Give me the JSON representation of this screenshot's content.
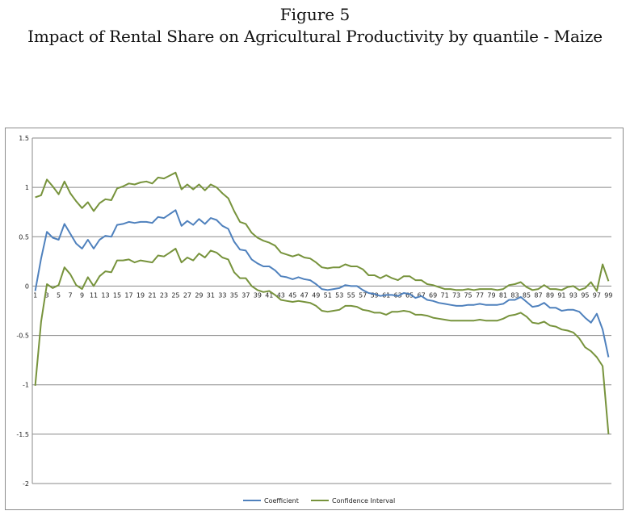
{
  "figure": {
    "label": "Figure 5",
    "caption": "Impact of Rental Share on Agricultural Productivity by quantile - Maize"
  },
  "chart_data": {
    "type": "line",
    "ylim": [
      -2,
      1.5
    ],
    "y_ticks": [
      1.5,
      1,
      0.5,
      0,
      -0.5,
      -1,
      -1.5,
      -2
    ],
    "x": [
      1,
      2,
      3,
      4,
      5,
      6,
      7,
      8,
      9,
      10,
      11,
      12,
      13,
      14,
      15,
      16,
      17,
      18,
      19,
      20,
      21,
      22,
      23,
      24,
      25,
      26,
      27,
      28,
      29,
      30,
      31,
      32,
      33,
      34,
      35,
      36,
      37,
      38,
      39,
      40,
      41,
      42,
      43,
      44,
      45,
      46,
      47,
      48,
      49,
      50,
      51,
      52,
      53,
      54,
      55,
      56,
      57,
      58,
      59,
      60,
      61,
      62,
      63,
      64,
      65,
      66,
      67,
      68,
      69,
      70,
      71,
      72,
      73,
      74,
      75,
      76,
      77,
      78,
      79,
      80,
      81,
      82,
      83,
      84,
      85,
      86,
      87,
      88,
      89,
      90,
      91,
      92,
      93,
      94,
      95,
      96,
      97,
      98,
      99
    ],
    "x_tick_labels": [
      "1",
      "3",
      "5",
      "7",
      "9",
      "11",
      "13",
      "15",
      "17",
      "19",
      "21",
      "23",
      "25",
      "27",
      "29",
      "31",
      "33",
      "35",
      "37",
      "39",
      "41",
      "43",
      "45",
      "47",
      "49",
      "51",
      "53",
      "55",
      "57",
      "59",
      "61",
      "63",
      "65",
      "67",
      "69",
      "71",
      "73",
      "75",
      "77",
      "79",
      "81",
      "83",
      "85",
      "87",
      "89",
      "91",
      "93",
      "95",
      "97",
      "99"
    ],
    "grid": "horizontal",
    "legend_position": "bottom",
    "colors": {
      "coefficient": "#4f81bd",
      "confidence": "#77933c"
    },
    "series": [
      {
        "name": "Coefficient",
        "values": [
          -0.05,
          0.28,
          0.55,
          0.49,
          0.47,
          0.63,
          0.53,
          0.43,
          0.38,
          0.47,
          0.38,
          0.47,
          0.51,
          0.5,
          0.62,
          0.63,
          0.65,
          0.64,
          0.65,
          0.65,
          0.64,
          0.7,
          0.69,
          0.73,
          0.77,
          0.61,
          0.66,
          0.62,
          0.68,
          0.63,
          0.69,
          0.67,
          0.61,
          0.58,
          0.45,
          0.37,
          0.36,
          0.27,
          0.23,
          0.2,
          0.2,
          0.16,
          0.1,
          0.09,
          0.07,
          0.09,
          0.07,
          0.06,
          0.02,
          -0.03,
          -0.04,
          -0.03,
          -0.02,
          0.01,
          0,
          0,
          -0.04,
          -0.07,
          -0.08,
          -0.1,
          -0.09,
          -0.09,
          -0.1,
          -0.07,
          -0.08,
          -0.12,
          -0.1,
          -0.14,
          -0.15,
          -0.17,
          -0.18,
          -0.19,
          -0.2,
          -0.2,
          -0.19,
          -0.19,
          -0.18,
          -0.19,
          -0.19,
          -0.19,
          -0.18,
          -0.14,
          -0.14,
          -0.11,
          -0.16,
          -0.21,
          -0.2,
          -0.17,
          -0.22,
          -0.22,
          -0.25,
          -0.24,
          -0.24,
          -0.26,
          -0.32,
          -0.37,
          -0.28,
          -0.44,
          -0.72
        ]
      },
      {
        "name": "Confidence Interval",
        "values": [
          0.9,
          0.92,
          1.08,
          1.01,
          0.93,
          1.06,
          0.94,
          0.86,
          0.79,
          0.85,
          0.76,
          0.84,
          0.88,
          0.87,
          0.99,
          1.01,
          1.04,
          1.03,
          1.05,
          1.06,
          1.04,
          1.1,
          1.09,
          1.12,
          1.15,
          0.98,
          1.03,
          0.98,
          1.03,
          0.97,
          1.03,
          1,
          0.94,
          0.89,
          0.76,
          0.65,
          0.63,
          0.54,
          0.49,
          0.46,
          0.44,
          0.41,
          0.34,
          0.32,
          0.3,
          0.32,
          0.29,
          0.28,
          0.24,
          0.19,
          0.18,
          0.19,
          0.19,
          0.22,
          0.2,
          0.2,
          0.17,
          0.11,
          0.11,
          0.08,
          0.11,
          0.08,
          0.06,
          0.1,
          0.1,
          0.06,
          0.06,
          0.02,
          0.01,
          -0.01,
          -0.03,
          -0.03,
          -0.04,
          -0.04,
          -0.03,
          -0.04,
          -0.03,
          -0.03,
          -0.03,
          -0.04,
          -0.03,
          0.01,
          0.02,
          0.04,
          -0.01,
          -0.04,
          -0.03,
          0.01,
          -0.03,
          -0.03,
          -0.04,
          -0.01,
          0,
          -0.04,
          -0.02,
          0.04,
          -0.05,
          0.22,
          0.05
        ]
      },
      {
        "name": "Confidence Interval",
        "values": [
          -1.01,
          -0.36,
          0.02,
          -0.02,
          0.01,
          0.19,
          0.12,
          0.01,
          -0.03,
          0.09,
          0,
          0.1,
          0.15,
          0.14,
          0.26,
          0.26,
          0.27,
          0.24,
          0.26,
          0.25,
          0.24,
          0.31,
          0.3,
          0.34,
          0.38,
          0.24,
          0.29,
          0.26,
          0.33,
          0.29,
          0.36,
          0.34,
          0.29,
          0.27,
          0.14,
          0.08,
          0.08,
          0,
          -0.04,
          -0.06,
          -0.05,
          -0.09,
          -0.14,
          -0.15,
          -0.16,
          -0.15,
          -0.16,
          -0.17,
          -0.2,
          -0.25,
          -0.26,
          -0.25,
          -0.24,
          -0.2,
          -0.2,
          -0.21,
          -0.24,
          -0.25,
          -0.27,
          -0.27,
          -0.29,
          -0.26,
          -0.26,
          -0.25,
          -0.26,
          -0.29,
          -0.29,
          -0.3,
          -0.32,
          -0.33,
          -0.34,
          -0.35,
          -0.35,
          -0.35,
          -0.35,
          -0.35,
          -0.34,
          -0.35,
          -0.35,
          -0.35,
          -0.33,
          -0.3,
          -0.29,
          -0.27,
          -0.31,
          -0.37,
          -0.38,
          -0.36,
          -0.4,
          -0.41,
          -0.44,
          -0.45,
          -0.47,
          -0.53,
          -0.62,
          -0.66,
          -0.72,
          -0.81,
          -1.5
        ]
      }
    ]
  }
}
